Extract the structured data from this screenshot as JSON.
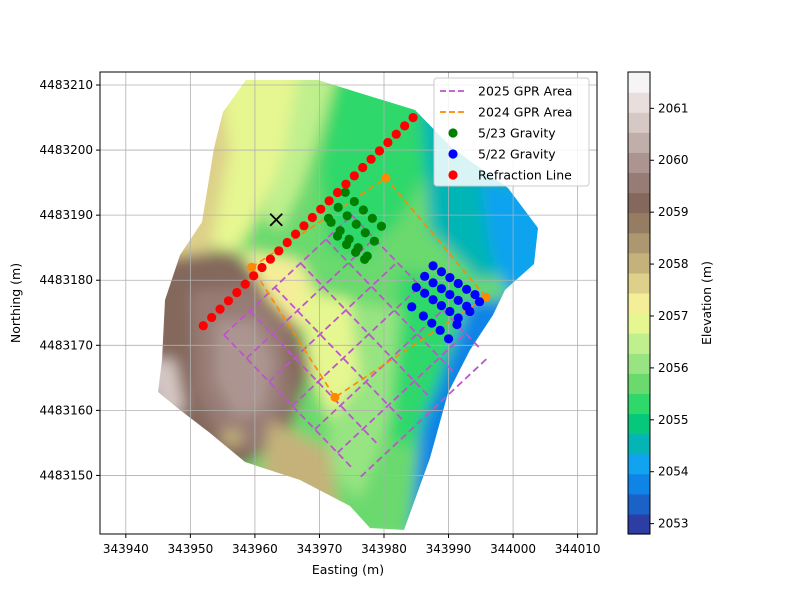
{
  "chart_data": {
    "type": "scatter",
    "xlabel": "Easting (m)",
    "ylabel": "Northing (m)",
    "xlim": [
      343936,
      344013
    ],
    "ylim": [
      4483141,
      4483212
    ],
    "xticks": [
      343940,
      343950,
      343960,
      343970,
      343980,
      343990,
      344000,
      344010
    ],
    "yticks": [
      4483150,
      4483160,
      4483170,
      4483180,
      4483190,
      4483200,
      4483210
    ],
    "grid": true,
    "legend_position": "top-right",
    "legend": [
      {
        "label": "2025 GPR Area",
        "kind": "dashed-line",
        "color": "#bb55cc"
      },
      {
        "label": "2024 GPR Area",
        "kind": "dashed-line",
        "color": "#ff8800"
      },
      {
        "label": "5/23 Gravity",
        "kind": "marker",
        "color": "#008000"
      },
      {
        "label": "5/22 Gravity",
        "kind": "marker",
        "color": "#0000ff"
      },
      {
        "label": "Refraction Line",
        "kind": "marker",
        "color": "#ff0000"
      }
    ],
    "colorbar": {
      "label": "Elevation (m)",
      "range": [
        2052.8,
        2061.7
      ],
      "ticks": [
        2053,
        2054,
        2055,
        2056,
        2057,
        2058,
        2059,
        2060,
        2061
      ],
      "colors": [
        "#2c3ea4",
        "#1b62c8",
        "#0d84e6",
        "#11a3ef",
        "#05b5b5",
        "#06c87c",
        "#2fd86a",
        "#6ad96e",
        "#98e482",
        "#c0f08e",
        "#e6f690",
        "#f4ee98",
        "#ddd08a",
        "#c4b27a",
        "#ad9770",
        "#957c63",
        "#84685c",
        "#977c75",
        "#ac9590",
        "#c0aeaa",
        "#d6c8c5",
        "#e8dfdd",
        "#f6f4f4"
      ]
    },
    "refraction_line": {
      "x": [
        343952,
        343953.3,
        343954.6,
        343955.9,
        343957.2,
        343958.5,
        343959.8,
        343961.1,
        343962.4,
        343963.7,
        343965,
        343966.3,
        343967.6,
        343968.9,
        343970.2,
        343971.5,
        343972.8,
        343974.1,
        343975.4,
        343976.7,
        343978,
        343979.3,
        343980.6,
        343981.9,
        343983.2,
        343984.5
      ],
      "y": [
        4483173,
        4483174.28,
        4483175.56,
        4483176.84,
        4483178.12,
        4483179.4,
        4483180.68,
        4483181.96,
        4483183.24,
        4483184.52,
        4483185.8,
        4483187.08,
        4483188.36,
        4483189.64,
        4483190.92,
        4483192.2,
        4483193.48,
        4483194.76,
        4483196.04,
        4483197.32,
        4483198.6,
        4483199.88,
        4483201.16,
        4483202.44,
        4483203.72,
        4483205
      ]
    },
    "gravity_523": {
      "x": [
        343974.0,
        343975.4,
        343976.8,
        343978.2,
        343979.6,
        343972.9,
        343974.3,
        343975.7,
        343977.1,
        343978.5,
        343971.8,
        343973.2,
        343974.6,
        343976.0,
        343977.4,
        343971.4,
        343972.8,
        343974.2,
        343975.6,
        343977.0
      ],
      "y": [
        4483193.5,
        4483192.1,
        4483190.8,
        4483189.5,
        4483188.3,
        4483191.2,
        4483189.9,
        4483188.6,
        4483187.3,
        4483186.0,
        4483188.9,
        4483187.6,
        4483186.3,
        4483185.0,
        4483183.7,
        4483189.5,
        4483186.8,
        4483185.5,
        4483184.3,
        4483183.2
      ]
    },
    "gravity_522": {
      "x": [
        343987.6,
        343988.9,
        343990.2,
        343991.5,
        343992.8,
        343994.1,
        343986.3,
        343987.6,
        343988.9,
        343990.2,
        343991.5,
        343992.8,
        343985.0,
        343986.3,
        343987.6,
        343988.9,
        343990.2,
        343991.5,
        343984.3,
        343986.1,
        343987.4,
        343988.7,
        343990.0,
        343991.3,
        343993.3,
        343994.8
      ],
      "y": [
        4483182.2,
        4483181.3,
        4483180.4,
        4483179.5,
        4483178.6,
        4483177.8,
        4483180.6,
        4483179.6,
        4483178.7,
        4483177.8,
        4483176.9,
        4483176.0,
        4483178.9,
        4483178.0,
        4483177.0,
        4483176.1,
        4483175.2,
        4483174.2,
        4483175.9,
        4483174.5,
        4483173.4,
        4483172.3,
        4483171.0,
        4483173.2,
        4483175.2,
        4483176.7
      ]
    },
    "gpr_2024": {
      "x": [
        343959.5,
        343980.3,
        343995.8,
        343972.4,
        343959.5
      ],
      "y": [
        4483182,
        4483195.7,
        4483177.4,
        4483162,
        4483182
      ]
    },
    "gpr_2025_lines": [
      {
        "x": [
          343955.2,
          343975.3
        ],
        "y": [
          4483171.6,
          4483150.9
        ]
      },
      {
        "x": [
          343959.2,
          343979.2
        ],
        "y": [
          4483175.3,
          4483154.6
        ]
      },
      {
        "x": [
          343963.1,
          343983.2
        ],
        "y": [
          4483178.9,
          4483158.2
        ]
      },
      {
        "x": [
          343967.1,
          343987.2
        ],
        "y": [
          4483182.6,
          4483161.9
        ]
      },
      {
        "x": [
          343971.0,
          343991.1
        ],
        "y": [
          4483186.3,
          4483165.6
        ]
      },
      {
        "x": [
          343975.0,
          343995.1
        ],
        "y": [
          4483190.0,
          4483169.3
        ]
      },
      {
        "x": [
          343955.2,
          343975.0
        ],
        "y": [
          4483171.6,
          4483190.0
        ]
      },
      {
        "x": [
          343958.7,
          343978.5
        ],
        "y": [
          4483168.0,
          4483186.4
        ]
      },
      {
        "x": [
          343962.2,
          343982.1
        ],
        "y": [
          4483164.4,
          4483182.8
        ]
      },
      {
        "x": [
          343965.8,
          343985.6
        ],
        "y": [
          4483160.7,
          4483179.1
        ]
      },
      {
        "x": [
          343969.3,
          343989.2
        ],
        "y": [
          4483157.1,
          4483175.5
        ]
      },
      {
        "x": [
          343972.8,
          343992.7
        ],
        "y": [
          4483153.5,
          4483171.9
        ]
      },
      {
        "x": [
          343976.4,
          343996.2
        ],
        "y": [
          4483149.8,
          4483168.2
        ]
      }
    ],
    "other_marker": {
      "x": [
        343963.3
      ],
      "y": [
        4483189.3
      ],
      "color": "#000000",
      "symbol": "x"
    }
  }
}
